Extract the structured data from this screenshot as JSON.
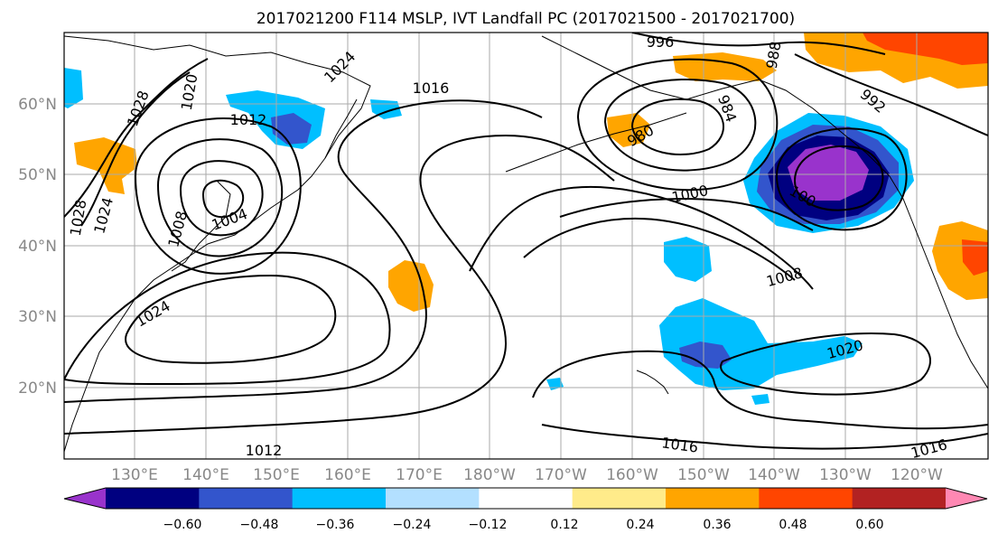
{
  "title": "2017021200 F114 MSLP, IVT Landfall PC (2017021500 - 2017021700)",
  "map": {
    "lon_ticks": [
      "130°E",
      "140°E",
      "150°E",
      "160°E",
      "170°E",
      "180°W",
      "170°W",
      "160°W",
      "150°W",
      "140°W",
      "130°W",
      "120°W"
    ],
    "lat_ticks": [
      "60°N",
      "50°N",
      "40°N",
      "30°N",
      "20°N"
    ],
    "isobar_labels": [
      {
        "text": "996"
      },
      {
        "text": "1024"
      },
      {
        "text": "1016"
      },
      {
        "text": "1020"
      },
      {
        "text": "1028"
      },
      {
        "text": "1012"
      },
      {
        "text": "984"
      },
      {
        "text": "980"
      },
      {
        "text": "992"
      },
      {
        "text": "988"
      },
      {
        "text": "1000"
      },
      {
        "text": "100"
      },
      {
        "text": "1024"
      },
      {
        "text": "1028"
      },
      {
        "text": "1008"
      },
      {
        "text": "1004"
      },
      {
        "text": "1008"
      },
      {
        "text": "1024"
      },
      {
        "text": "1020"
      },
      {
        "text": "1012"
      },
      {
        "text": "1016"
      },
      {
        "text": "1016"
      }
    ]
  },
  "colorbar": {
    "ticks": [
      "−0.60",
      "−0.48",
      "−0.36",
      "−0.24",
      "−0.12",
      "0.12",
      "0.24",
      "0.36",
      "0.48",
      "0.60"
    ],
    "colors": [
      "#9933cc",
      "#000080",
      "#3355cc",
      "#00bfff",
      "#b3e0ff",
      "#ffffff",
      "#ffeb8a",
      "#ffa500",
      "#ff4500",
      "#b22222",
      "#ff88b3"
    ],
    "extend": "both"
  },
  "chart_data": {
    "type": "heatmap",
    "title": "2017021200 F114 MSLP, IVT Landfall PC (2017021500 - 2017021700)",
    "colorbar_levels": [
      -0.6,
      -0.48,
      -0.36,
      -0.24,
      -0.12,
      0.12,
      0.24,
      0.36,
      0.48,
      0.6
    ],
    "xlabel": "",
    "ylabel": "",
    "x_ticks": [
      "130°E",
      "140°E",
      "150°E",
      "160°E",
      "170°E",
      "180°W",
      "170°W",
      "160°W",
      "150°W",
      "140°W",
      "130°W",
      "120°W"
    ],
    "y_ticks": [
      "60°N",
      "50°N",
      "40°N",
      "30°N",
      "20°N"
    ],
    "isobar_values_hPa": [
      980,
      984,
      988,
      992,
      996,
      1000,
      1004,
      1008,
      1012,
      1016,
      1020,
      1024,
      1028
    ]
  }
}
